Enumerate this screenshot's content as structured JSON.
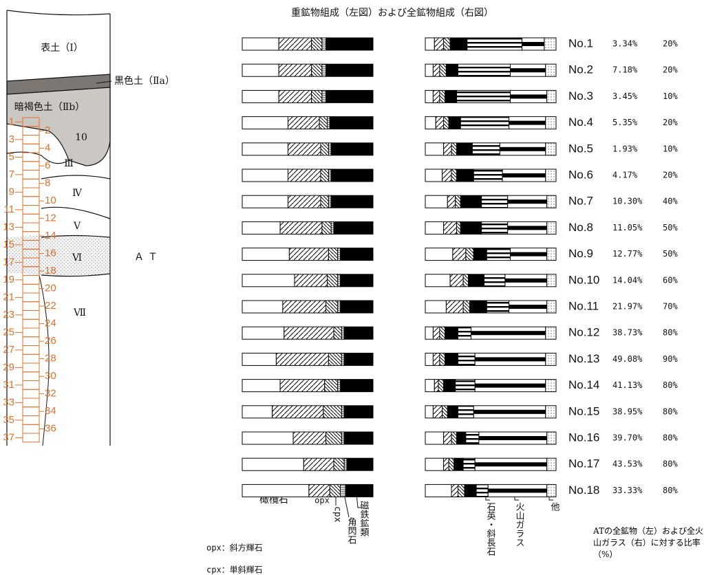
{
  "title": "重鉱物組成（左図）および全鉱物組成（右図）",
  "column": {
    "topsoil": "表土（Ⅰ）",
    "black_soil": "黒色土（Ⅱa）",
    "dark_brown_soil": "暗褐色土（Ⅱb）",
    "units": [
      "10",
      "Ⅲ",
      "Ⅳ",
      "Ⅴ",
      "Ⅵ",
      "Ⅶ"
    ],
    "at": "ＡＴ",
    "samples": [
      1,
      2,
      3,
      4,
      5,
      6,
      7,
      8,
      9,
      10,
      11,
      12,
      13,
      14,
      15,
      16,
      17,
      18,
      19,
      20,
      21,
      22,
      23,
      24,
      25,
      26,
      27,
      28,
      29,
      30,
      31,
      32,
      33,
      34,
      35,
      36,
      37
    ]
  },
  "heavy_legend": [
    "橄欖石",
    "opx",
    "cpx",
    "角閃石",
    "磁鉄鉱類"
  ],
  "total_legend": [
    "石英・斜長石",
    "火山ガラス",
    "他"
  ],
  "rows": [
    {
      "no": "No.1",
      "heavy": [
        28,
        25,
        8,
        3,
        36
      ],
      "total": [
        7,
        7,
        5,
        13,
        42,
        17,
        9
      ],
      "glass_ratio": "3.34%",
      "at_ratio": "20%"
    },
    {
      "no": "No.2",
      "heavy": [
        28,
        25,
        8,
        3,
        36
      ],
      "total": [
        6,
        5,
        5,
        9,
        40,
        27,
        8
      ],
      "glass_ratio": "7.18%",
      "at_ratio": "20%"
    },
    {
      "no": "No.3",
      "heavy": [
        28,
        25,
        8,
        3,
        36
      ],
      "total": [
        6,
        5,
        4,
        9,
        41,
        28,
        7
      ],
      "glass_ratio": "3.45%",
      "at_ratio": "10%"
    },
    {
      "no": "No.4",
      "heavy": [
        35,
        24,
        6,
        2,
        33
      ],
      "total": [
        8,
        6,
        4,
        9,
        37,
        28,
        8
      ],
      "glass_ratio": "5.35%",
      "at_ratio": "20%"
    },
    {
      "no": "No.5",
      "heavy": [
        35,
        25,
        6,
        2,
        32
      ],
      "total": [
        14,
        6,
        4,
        12,
        21,
        35,
        8
      ],
      "glass_ratio": "1.93%",
      "at_ratio": "10%"
    },
    {
      "no": "No.6",
      "heavy": [
        35,
        25,
        6,
        2,
        32
      ],
      "total": [
        13,
        7,
        4,
        13,
        22,
        33,
        8
      ],
      "glass_ratio": "4.17%",
      "at_ratio": "20%"
    },
    {
      "no": "No.7",
      "heavy": [
        35,
        25,
        6,
        2,
        32
      ],
      "total": [
        17,
        6,
        4,
        16,
        20,
        30,
        7
      ],
      "glass_ratio": "10.30%",
      "at_ratio": "40%"
    },
    {
      "no": "No.8",
      "heavy": [
        29,
        32,
        7,
        2,
        30
      ],
      "total": [
        14,
        10,
        3,
        16,
        20,
        30,
        7
      ],
      "glass_ratio": "11.05%",
      "at_ratio": "50%"
    },
    {
      "no": "No.9",
      "heavy": [
        36,
        30,
        7,
        2,
        25
      ],
      "total": [
        21,
        10,
        6,
        10,
        18,
        28,
        7
      ],
      "glass_ratio": "12.77%",
      "at_ratio": "50%"
    },
    {
      "no": "No.10",
      "heavy": [
        40,
        25,
        8,
        2,
        25
      ],
      "total": [
        19,
        10,
        4,
        12,
        16,
        32,
        7
      ],
      "glass_ratio": "14.04%",
      "at_ratio": "60%"
    },
    {
      "no": "No.11",
      "heavy": [
        31,
        33,
        9,
        2,
        25
      ],
      "total": [
        16,
        13,
        5,
        13,
        17,
        29,
        7
      ],
      "glass_ratio": "21.97%",
      "at_ratio": "70%"
    },
    {
      "no": "No.12",
      "heavy": [
        32,
        38,
        6,
        2,
        22
      ],
      "total": [
        6,
        5,
        4,
        10,
        10,
        57,
        8
      ],
      "glass_ratio": "38.73%",
      "at_ratio": "80%"
    },
    {
      "no": "No.13",
      "heavy": [
        26,
        40,
        10,
        2,
        22
      ],
      "total": [
        6,
        5,
        4,
        10,
        13,
        54,
        8
      ],
      "glass_ratio": "49.08%",
      "at_ratio": "90%"
    },
    {
      "no": "No.14",
      "heavy": [
        29,
        34,
        10,
        2,
        25
      ],
      "total": [
        7,
        3,
        4,
        9,
        15,
        54,
        8
      ],
      "glass_ratio": "41.13%",
      "at_ratio": "80%"
    },
    {
      "no": "No.15",
      "heavy": [
        23,
        39,
        14,
        2,
        22
      ],
      "total": [
        6,
        7,
        4,
        8,
        12,
        55,
        8
      ],
      "glass_ratio": "38.95%",
      "at_ratio": "80%"
    },
    {
      "no": "No.16",
      "heavy": [
        39,
        25,
        12,
        2,
        22
      ],
      "total": [
        14,
        6,
        4,
        7,
        10,
        52,
        7
      ],
      "glass_ratio": "39.70%",
      "at_ratio": "80%"
    },
    {
      "no": "No.17",
      "heavy": [
        47,
        23,
        8,
        2,
        20
      ],
      "total": [
        14,
        4,
        4,
        7,
        9,
        55,
        7
      ],
      "glass_ratio": "43.53%",
      "at_ratio": "80%"
    },
    {
      "no": "No.18",
      "heavy": [
        51,
        16,
        8,
        4,
        21
      ],
      "total": [
        20,
        5,
        5,
        9,
        9,
        45,
        7
      ],
      "glass_ratio": "33.33%",
      "at_ratio": "80%"
    }
  ],
  "notes": [
    "opx：斜方輝石",
    "cpx：単斜輝石"
  ],
  "ratio_note": "ATの全鉱物（左）および全火山ガラス（右）に対する比率（%）"
}
